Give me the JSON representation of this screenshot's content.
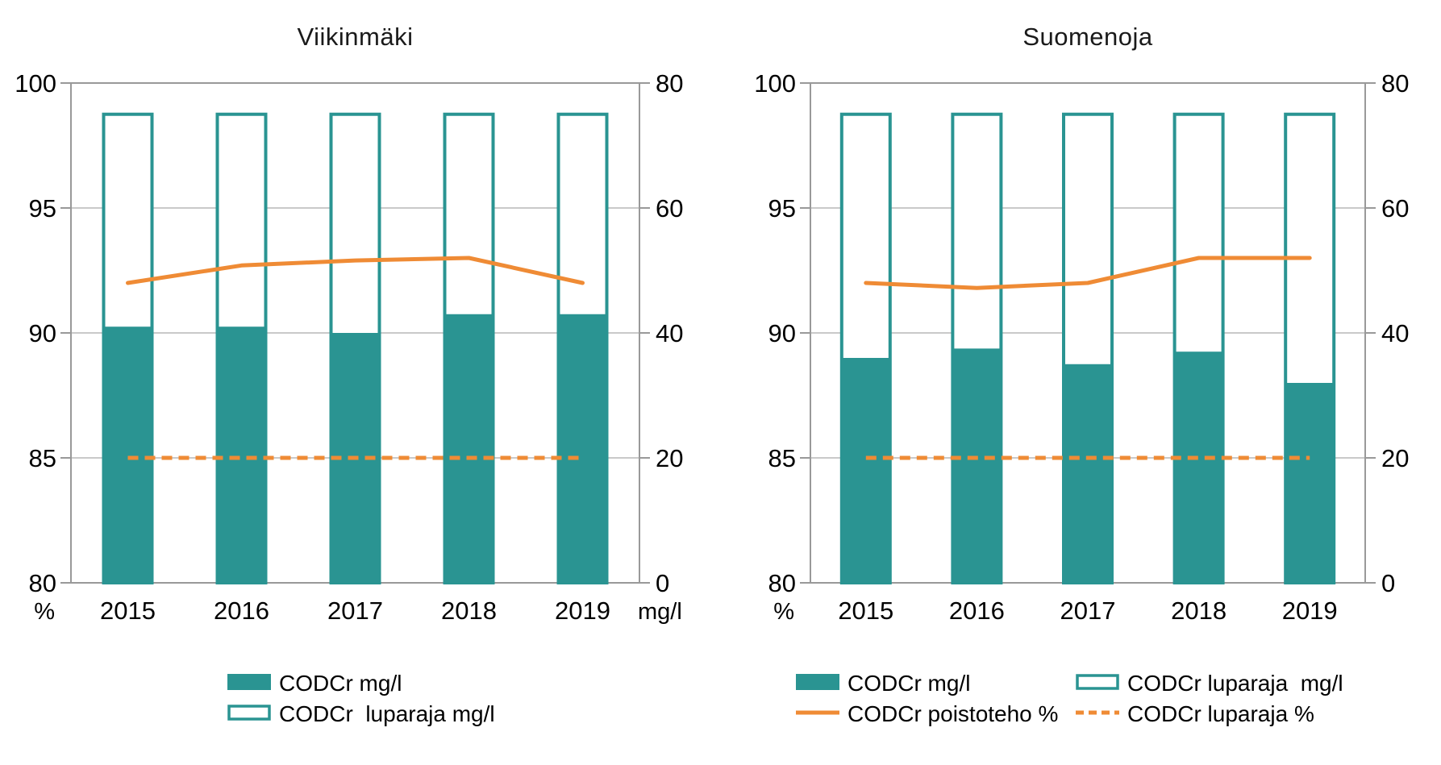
{
  "page": {
    "background": "#ffffff"
  },
  "colors": {
    "bar_teal": "#2A9492",
    "line_orange": "#EF8B35",
    "grid": "#C9C9C9",
    "axis": "#999999",
    "text": "#000000"
  },
  "chart_data": [
    {
      "title": "Viikinmäki",
      "type": "combo-bar-line",
      "categories": [
        "2015",
        "2016",
        "2017",
        "2018",
        "2019"
      ],
      "left_axis": {
        "unit": "%",
        "min": 80,
        "max": 100,
        "ticks": [
          100,
          95,
          90,
          85,
          80
        ]
      },
      "right_axis": {
        "unit": "mg/l",
        "min": 0,
        "max": 80,
        "ticks": [
          80,
          60,
          40,
          20,
          0
        ]
      },
      "grid": true,
      "legend_position": "bottom",
      "series": [
        {
          "name": "CODCr luparaja mg/l",
          "type": "bar-outline",
          "axis": "right",
          "values": [
            75,
            75,
            75,
            75,
            75
          ]
        },
        {
          "name": "CODCr mg/l",
          "type": "bar-filled",
          "axis": "right",
          "values": [
            41,
            41,
            40,
            43,
            43
          ]
        },
        {
          "name": "CODCr poistoteho %",
          "type": "line-solid",
          "axis": "left",
          "values": [
            92,
            92.7,
            92.9,
            93,
            92
          ]
        },
        {
          "name": "CODCr luparaja %",
          "type": "line-dashed",
          "axis": "left",
          "values": [
            85,
            85,
            85,
            85,
            85
          ]
        }
      ],
      "legend": [
        {
          "swatch": "bar-filled",
          "label": "CODCr mg/l",
          "row": 0,
          "col": 0
        },
        {
          "swatch": "bar-outline",
          "label": "CODCr  luparaja mg/l",
          "row": 1,
          "col": 0
        }
      ]
    },
    {
      "title": "Suomenoja",
      "type": "combo-bar-line",
      "categories": [
        "2015",
        "2016",
        "2017",
        "2018",
        "2019"
      ],
      "left_axis": {
        "unit": "%",
        "min": 80,
        "max": 100,
        "ticks": [
          100,
          95,
          90,
          85,
          80
        ]
      },
      "right_axis": {
        "unit": "",
        "min": 0,
        "max": 80,
        "ticks": [
          80,
          60,
          40,
          20,
          0
        ]
      },
      "grid": true,
      "legend_position": "bottom",
      "series": [
        {
          "name": "CODCr luparaja mg/l",
          "type": "bar-outline",
          "axis": "right",
          "values": [
            75,
            75,
            75,
            75,
            75
          ]
        },
        {
          "name": "CODCr mg/l",
          "type": "bar-filled",
          "axis": "right",
          "values": [
            36,
            37.5,
            35,
            37,
            32
          ]
        },
        {
          "name": "CODCr poistoteho %",
          "type": "line-solid",
          "axis": "left",
          "values": [
            92,
            91.8,
            92,
            93,
            93
          ]
        },
        {
          "name": "CODCr luparaja %",
          "type": "line-dashed",
          "axis": "left",
          "values": [
            85,
            85,
            85,
            85,
            85
          ]
        }
      ],
      "legend": [
        {
          "swatch": "bar-filled",
          "label": "CODCr mg/l",
          "row": 0,
          "col": 0
        },
        {
          "swatch": "bar-outline",
          "label": "CODCr luparaja  mg/l",
          "row": 0,
          "col": 1
        },
        {
          "swatch": "line-solid",
          "label": "CODCr poistoteho %",
          "row": 1,
          "col": 0
        },
        {
          "swatch": "line-dashed",
          "label": "CODCr luparaja %",
          "row": 1,
          "col": 1
        }
      ]
    }
  ]
}
